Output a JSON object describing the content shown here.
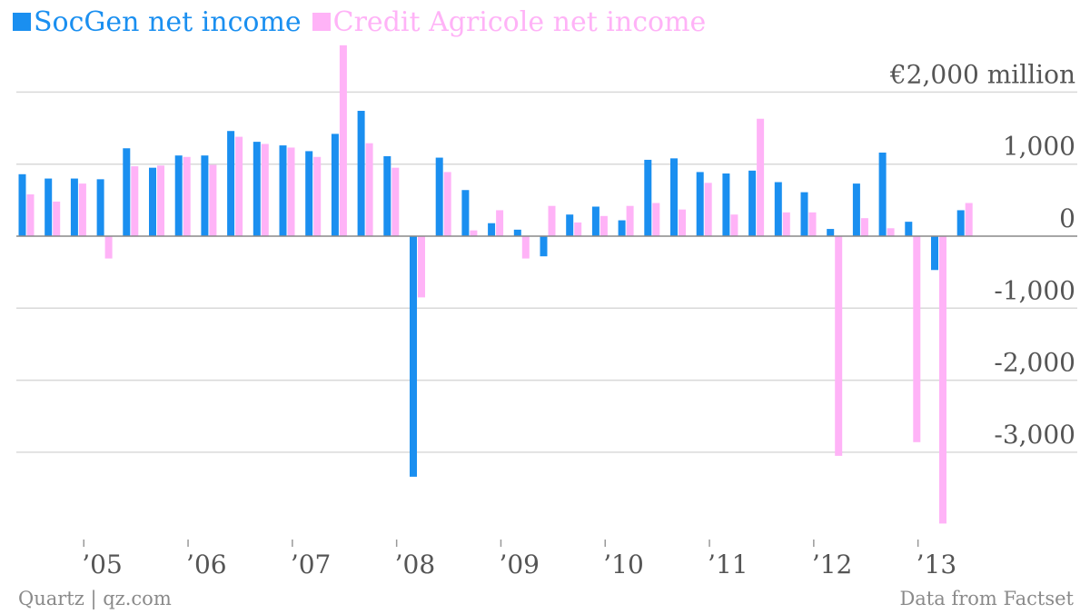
{
  "colors": {
    "socgen": "#1a8ff0",
    "credit_agricole": "#ffb3f7",
    "grid": "#d9d9d9",
    "zero_line": "#888888",
    "tick_text": "#555555"
  },
  "footer": {
    "source_left": "Quartz | qz.com",
    "source_right": "Data from Factset"
  },
  "chart_data": {
    "type": "bar",
    "title": "",
    "xlabel": "",
    "ylabel": "",
    "unit_label": "€2,000 million",
    "ylim": [
      -4200,
      2700
    ],
    "y_ticks": [
      {
        "value": 2000,
        "label": "€2,000 million"
      },
      {
        "value": 1000,
        "label": "1,000"
      },
      {
        "value": 0,
        "label": "0"
      },
      {
        "value": -1000,
        "label": "-1,000"
      },
      {
        "value": -2000,
        "label": "-2,000"
      },
      {
        "value": -3000,
        "label": "-3,000"
      }
    ],
    "year_ticks": [
      {
        "label": "’05",
        "index": 2.5
      },
      {
        "label": "’06",
        "index": 6.5
      },
      {
        "label": "’07",
        "index": 10.5
      },
      {
        "label": "’08",
        "index": 14.5
      },
      {
        "label": "’09",
        "index": 18.5
      },
      {
        "label": "’10",
        "index": 22.5
      },
      {
        "label": "’11",
        "index": 26.5
      },
      {
        "label": "’12",
        "index": 30.5
      },
      {
        "label": "’13",
        "index": 34.5
      }
    ],
    "legend_position": "top-left",
    "grid": true,
    "series": [
      {
        "name": "SocGen net income",
        "values": [
          860,
          800,
          800,
          790,
          1220,
          950,
          1120,
          1120,
          1460,
          1310,
          1260,
          1180,
          1420,
          1740,
          1110,
          -3340,
          1090,
          640,
          180,
          90,
          -280,
          300,
          410,
          220,
          1060,
          1080,
          890,
          870,
          910,
          750,
          610,
          100,
          730,
          1160,
          200,
          -470,
          360
        ]
      },
      {
        "name": "Credit Agricole net income",
        "values": [
          580,
          480,
          730,
          -310,
          970,
          980,
          1100,
          990,
          1380,
          1280,
          1230,
          1100,
          2650,
          1290,
          950,
          -850,
          890,
          80,
          360,
          -310,
          420,
          190,
          280,
          420,
          460,
          370,
          740,
          300,
          1630,
          330,
          330,
          -3050,
          250,
          110,
          -2860,
          -3990,
          460
        ]
      }
    ]
  }
}
